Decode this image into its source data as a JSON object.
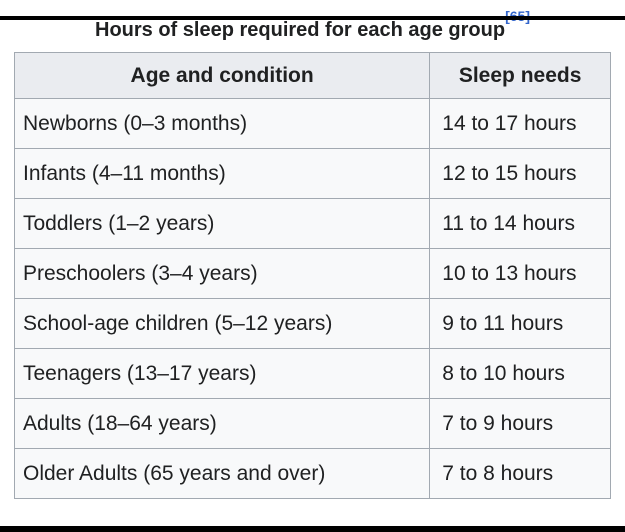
{
  "page": {
    "title": "Hours of sleep required for each age group",
    "reference_label": "[65]"
  },
  "table": {
    "headers": [
      "Age and condition",
      "Sleep needs"
    ],
    "rows": [
      {
        "age": "Newborns (0–3 months)",
        "sleep": "14 to 17 hours"
      },
      {
        "age": "Infants (4–11 months)",
        "sleep": "12 to 15 hours"
      },
      {
        "age": "Toddlers (1–2 years)",
        "sleep": "11 to 14 hours"
      },
      {
        "age": "Preschoolers (3–4 years)",
        "sleep": "10 to 13 hours"
      },
      {
        "age": "School-age children (5–12 years)",
        "sleep": "9 to 11 hours"
      },
      {
        "age": "Teenagers (13–17 years)",
        "sleep": "8 to 10 hours"
      },
      {
        "age": "Adults (18–64 years)",
        "sleep": "7 to 9 hours"
      },
      {
        "age": "Older Adults (65 years and over)",
        "sleep": "7 to 8 hours"
      }
    ]
  },
  "colors": {
    "header_bg": "#eaecf0",
    "cell_bg": "#f8f9fa",
    "border": "#a2a9b1",
    "text": "#202122",
    "link": "#3366cc",
    "letterbox": "#000000"
  },
  "chart_data": {
    "type": "table",
    "title": "Hours of sleep required for each age group",
    "columns": [
      "Age and condition",
      "Sleep needs"
    ],
    "rows": [
      [
        "Newborns (0–3 months)",
        "14 to 17 hours"
      ],
      [
        "Infants (4–11 months)",
        "12 to 15 hours"
      ],
      [
        "Toddlers (1–2 years)",
        "11 to 14 hours"
      ],
      [
        "Preschoolers (3–4 years)",
        "10 to 13 hours"
      ],
      [
        "School-age children (5–12 years)",
        "9 to 11 hours"
      ],
      [
        "Teenagers (13–17 years)",
        "8 to 10 hours"
      ],
      [
        "Adults (18–64 years)",
        "7 to 9 hours"
      ],
      [
        "Older Adults (65 years and over)",
        "7 to 8 hours"
      ]
    ]
  }
}
